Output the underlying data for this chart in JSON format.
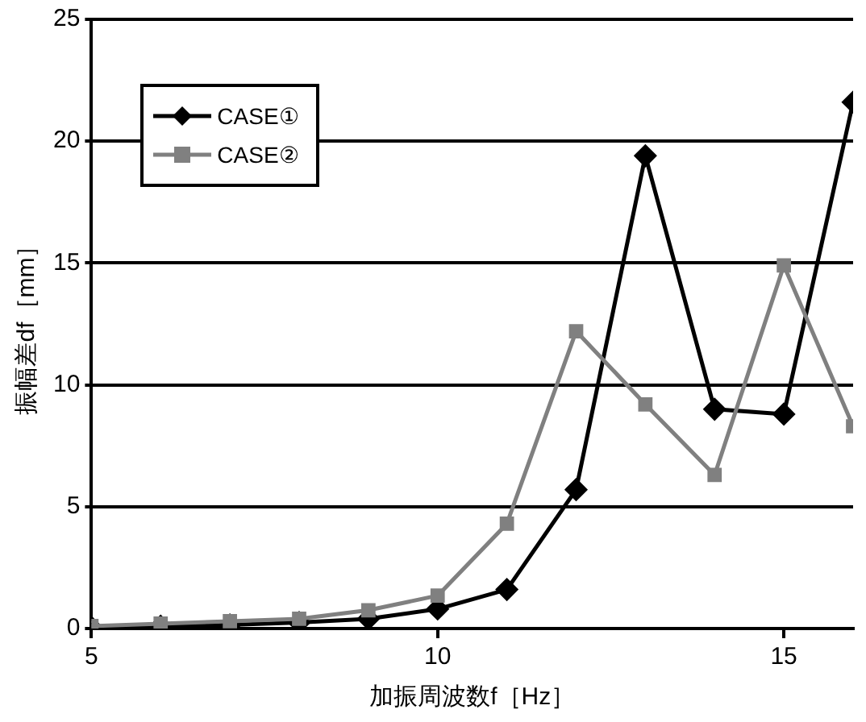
{
  "chart_data": {
    "type": "line",
    "xlabel": "加振周波数f［Hz］",
    "ylabel": "振幅差df［mm］",
    "x": [
      5,
      6,
      7,
      8,
      9,
      10,
      11,
      12,
      13,
      14,
      15,
      16
    ],
    "series": [
      {
        "name": "CASE①",
        "color": "#000000",
        "marker": "diamond",
        "values": [
          0.05,
          0.1,
          0.15,
          0.25,
          0.4,
          0.8,
          1.6,
          5.7,
          19.4,
          9.0,
          8.8,
          21.6
        ]
      },
      {
        "name": "CASE②",
        "color": "#808080",
        "marker": "square",
        "values": [
          0.1,
          0.2,
          0.3,
          0.4,
          0.75,
          1.35,
          4.3,
          12.2,
          9.2,
          6.3,
          14.9,
          8.3
        ]
      }
    ],
    "xlim": [
      5,
      16
    ],
    "xticks": [
      5,
      10,
      15
    ],
    "ylim": [
      0,
      25
    ],
    "yticks": [
      0,
      5,
      10,
      15,
      20,
      25
    ],
    "grid": "y",
    "legend": "top left",
    "line_style": "solid"
  }
}
